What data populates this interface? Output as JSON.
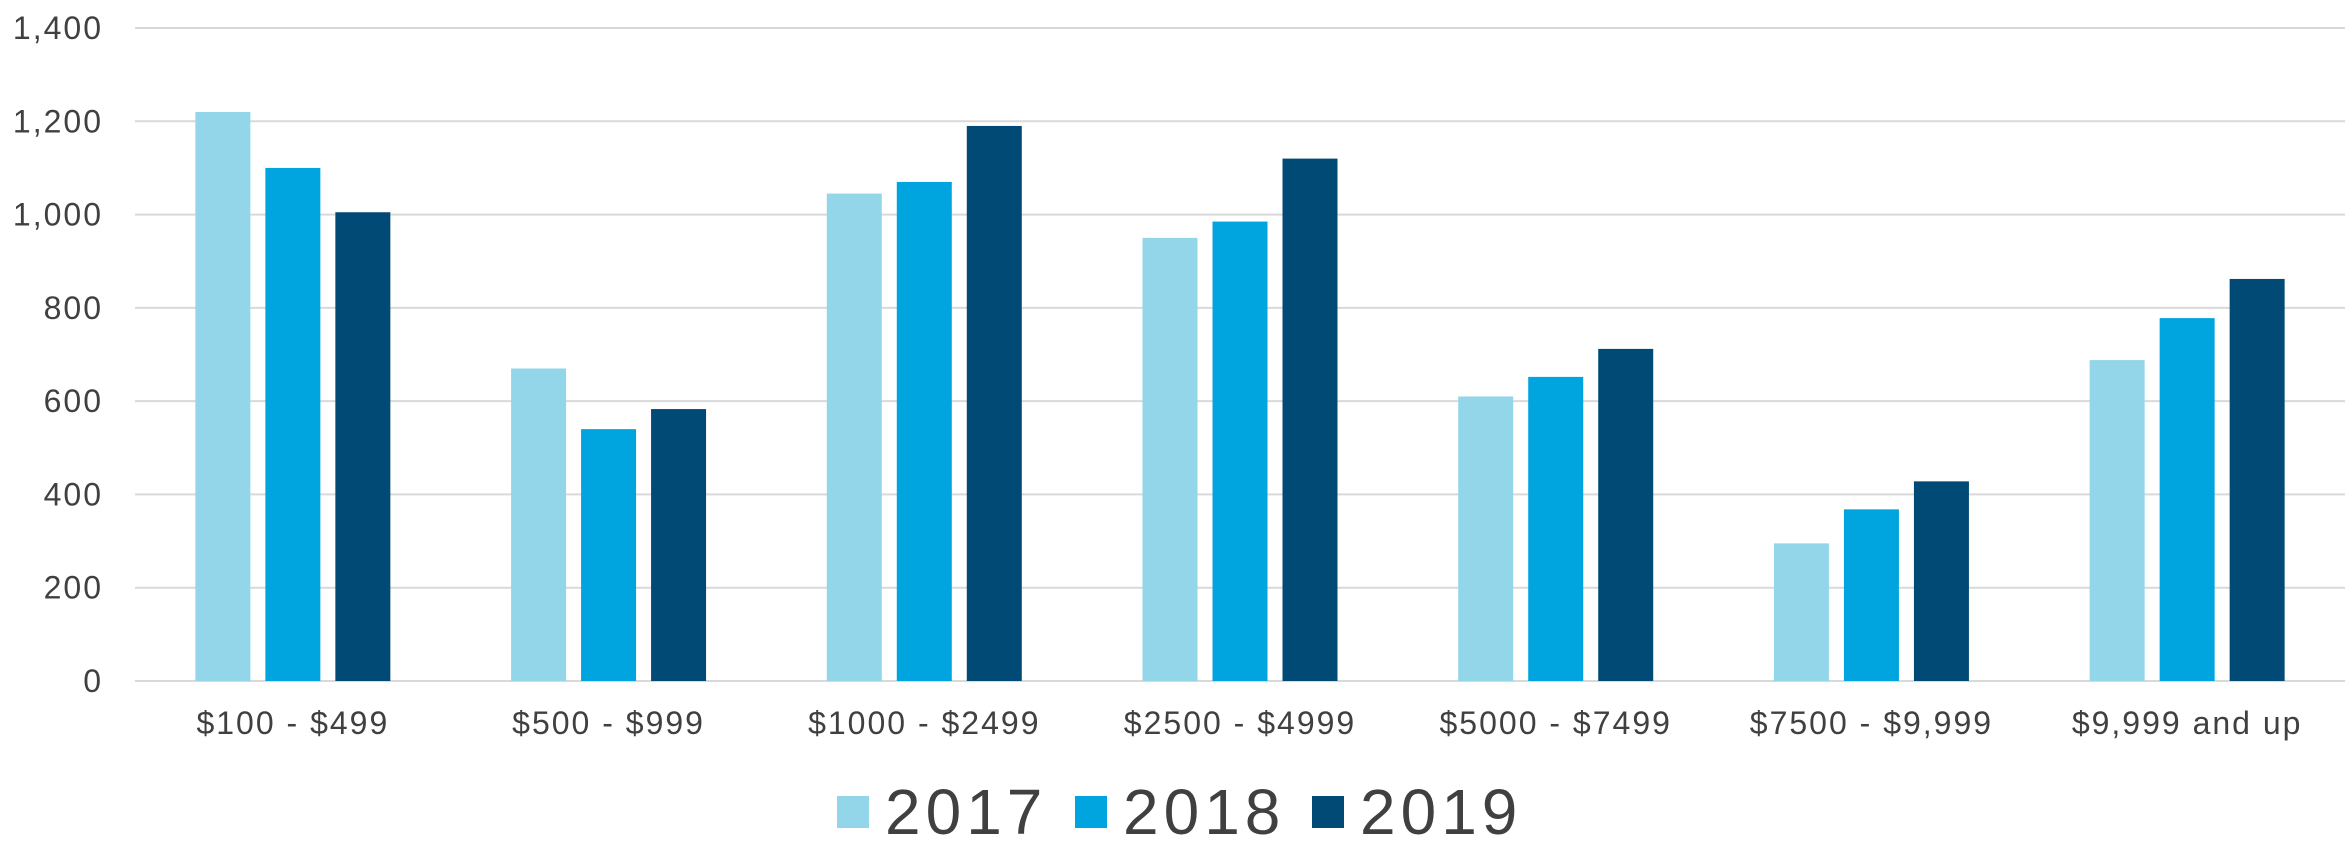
{
  "chart_data": {
    "type": "bar",
    "title": "",
    "xlabel": "",
    "ylabel": "",
    "ylim": [
      0,
      1400
    ],
    "yticks": [
      0,
      200,
      400,
      600,
      800,
      1000,
      1200,
      1400
    ],
    "ytick_labels": [
      "0",
      "200",
      "400",
      "600",
      "800",
      "1,000",
      "1,200",
      "1,400"
    ],
    "grid": true,
    "legend_position": "bottom",
    "categories": [
      "$100 - $499",
      "$500 - $999",
      "$1000 - $2499",
      "$2500 - $4999",
      "$5000 - $7499",
      "$7500 - $9,999",
      "$9,999 and up"
    ],
    "series": [
      {
        "name": "2017",
        "color": "#93d5e9",
        "values": [
          1220,
          670,
          1045,
          950,
          610,
          295,
          688
        ]
      },
      {
        "name": "2018",
        "color": "#00a5df",
        "values": [
          1100,
          540,
          1070,
          985,
          652,
          368,
          778
        ]
      },
      {
        "name": "2019",
        "color": "#004a75",
        "values": [
          1005,
          583,
          1190,
          1120,
          712,
          428,
          862
        ]
      }
    ]
  }
}
